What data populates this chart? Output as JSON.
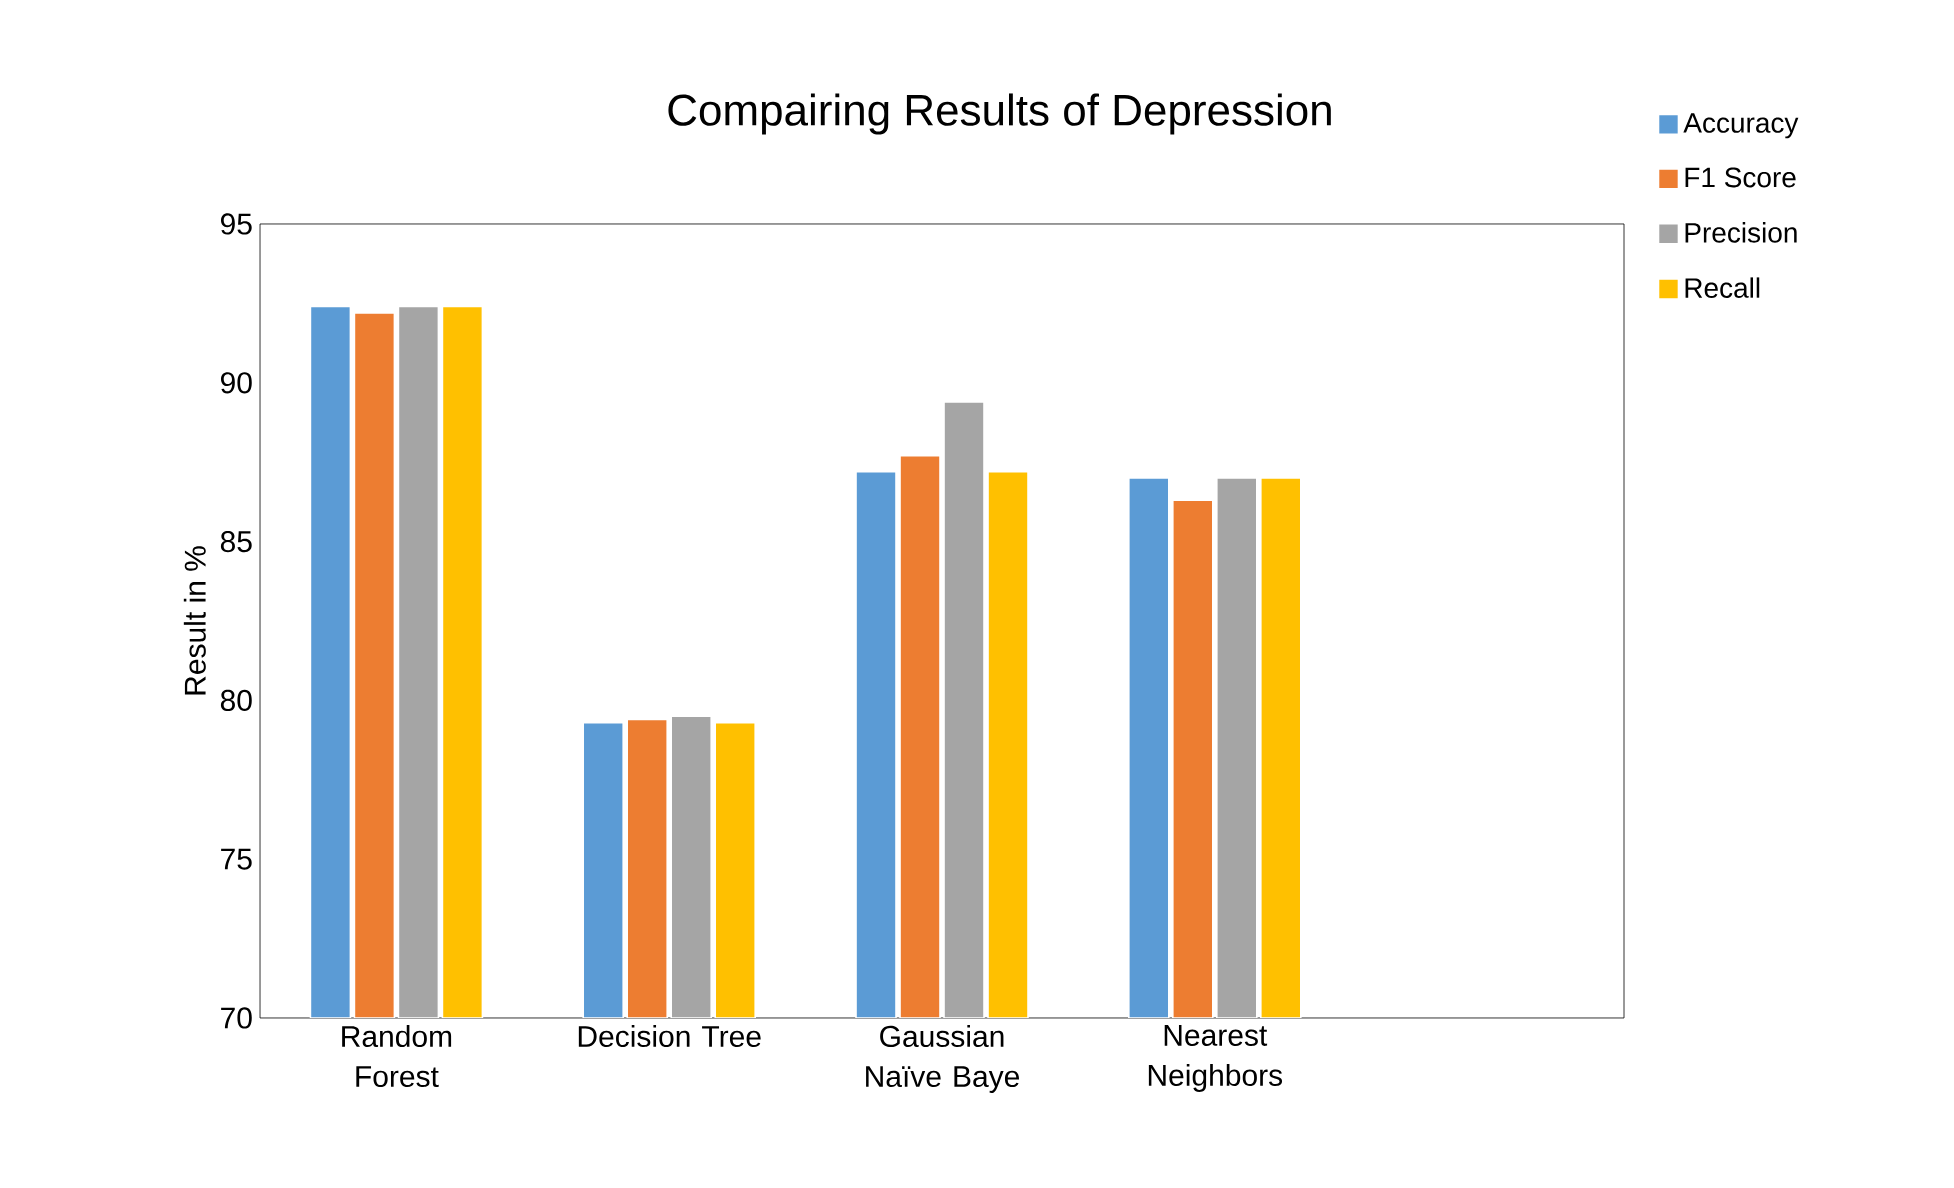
{
  "chart_data": {
    "type": "bar",
    "title": "Compairing Results of Depression",
    "ylabel": "Result in %",
    "categories": [
      "Random Forest",
      "Decision Tree",
      "Gaussian Naïve Baye",
      "Nearest Neighbors",
      null
    ],
    "series": [
      {
        "name": "Accuracy",
        "color": "#5b9bd5",
        "values": [
          92.4,
          79.3,
          87.2,
          87.0,
          null
        ]
      },
      {
        "name": "F1 Score",
        "color": "#ed7d31",
        "values": [
          92.2,
          79.4,
          87.7,
          86.3,
          null
        ]
      },
      {
        "name": "Precision",
        "color": "#a5a5a5",
        "values": [
          92.4,
          79.5,
          89.4,
          87.0,
          null
        ]
      },
      {
        "name": "Recall",
        "color": "#ffc000",
        "values": [
          92.4,
          79.3,
          87.2,
          87.0,
          null
        ]
      }
    ],
    "ylim": [
      70,
      95
    ],
    "yticks": [
      70,
      75,
      80,
      85,
      90,
      95
    ],
    "grid": false,
    "legend": "right"
  }
}
